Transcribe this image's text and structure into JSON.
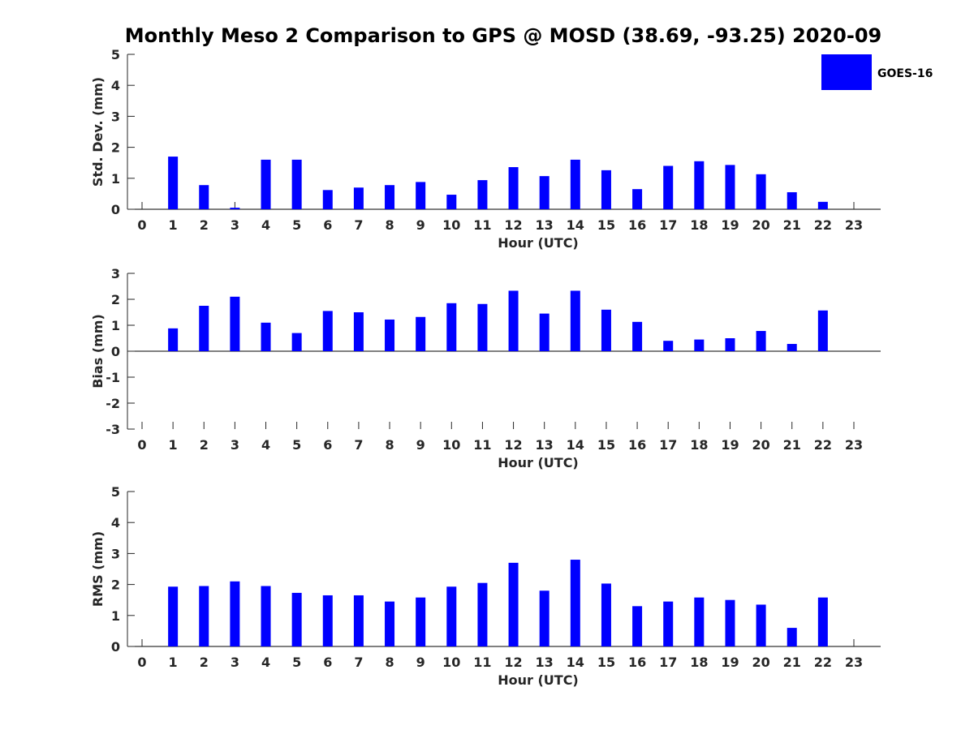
{
  "title": "Monthly Meso 2 Comparison to GPS @ MOSD (38.69, -93.25) 2020-09",
  "legend": {
    "label": "GOES-16",
    "placement": "top-right",
    "color": "#0000ff"
  },
  "chart_data": [
    {
      "type": "bar",
      "name": "std-dev",
      "xlabel": "Hour (UTC)",
      "ylabel": "Std. Dev. (mm)",
      "ylim": [
        0,
        5
      ],
      "yticks": [
        0,
        1,
        2,
        3,
        4,
        5
      ],
      "categories": [
        "0",
        "1",
        "2",
        "3",
        "4",
        "5",
        "6",
        "7",
        "8",
        "9",
        "10",
        "11",
        "12",
        "13",
        "14",
        "15",
        "16",
        "17",
        "18",
        "19",
        "20",
        "21",
        "22",
        "23"
      ],
      "series": [
        {
          "name": "GOES-16",
          "color": "#0000ff",
          "values": [
            null,
            1.7,
            0.78,
            0.05,
            1.6,
            1.6,
            0.62,
            0.7,
            0.78,
            0.88,
            0.47,
            0.94,
            1.36,
            1.07,
            1.6,
            1.26,
            0.65,
            1.4,
            1.55,
            1.43,
            1.13,
            0.55,
            0.24,
            null
          ]
        }
      ]
    },
    {
      "type": "bar",
      "name": "bias",
      "xlabel": "Hour (UTC)",
      "ylabel": "Bias (mm)",
      "ylim": [
        -3,
        3
      ],
      "yticks": [
        -3,
        -2,
        -1,
        0,
        1,
        2,
        3
      ],
      "categories": [
        "0",
        "1",
        "2",
        "3",
        "4",
        "5",
        "6",
        "7",
        "8",
        "9",
        "10",
        "11",
        "12",
        "13",
        "14",
        "15",
        "16",
        "17",
        "18",
        "19",
        "20",
        "21",
        "22",
        "23"
      ],
      "series": [
        {
          "name": "GOES-16",
          "color": "#0000ff",
          "values": [
            null,
            0.88,
            1.75,
            2.1,
            1.1,
            0.7,
            1.55,
            1.5,
            1.22,
            1.32,
            1.85,
            1.82,
            2.33,
            1.45,
            2.33,
            1.6,
            1.13,
            0.4,
            0.45,
            0.5,
            0.78,
            0.28,
            1.57,
            null
          ]
        }
      ]
    },
    {
      "type": "bar",
      "name": "rms",
      "xlabel": "Hour (UTC)",
      "ylabel": "RMS (mm)",
      "ylim": [
        0,
        5
      ],
      "yticks": [
        0,
        1,
        2,
        3,
        4,
        5
      ],
      "categories": [
        "0",
        "1",
        "2",
        "3",
        "4",
        "5",
        "6",
        "7",
        "8",
        "9",
        "10",
        "11",
        "12",
        "13",
        "14",
        "15",
        "16",
        "17",
        "18",
        "19",
        "20",
        "21",
        "22",
        "23"
      ],
      "series": [
        {
          "name": "GOES-16",
          "color": "#0000ff",
          "values": [
            null,
            1.93,
            1.95,
            2.1,
            1.95,
            1.73,
            1.65,
            1.65,
            1.45,
            1.58,
            1.93,
            2.05,
            2.7,
            1.8,
            2.8,
            2.03,
            1.3,
            1.45,
            1.58,
            1.5,
            1.35,
            0.6,
            1.58,
            null
          ]
        }
      ]
    }
  ]
}
